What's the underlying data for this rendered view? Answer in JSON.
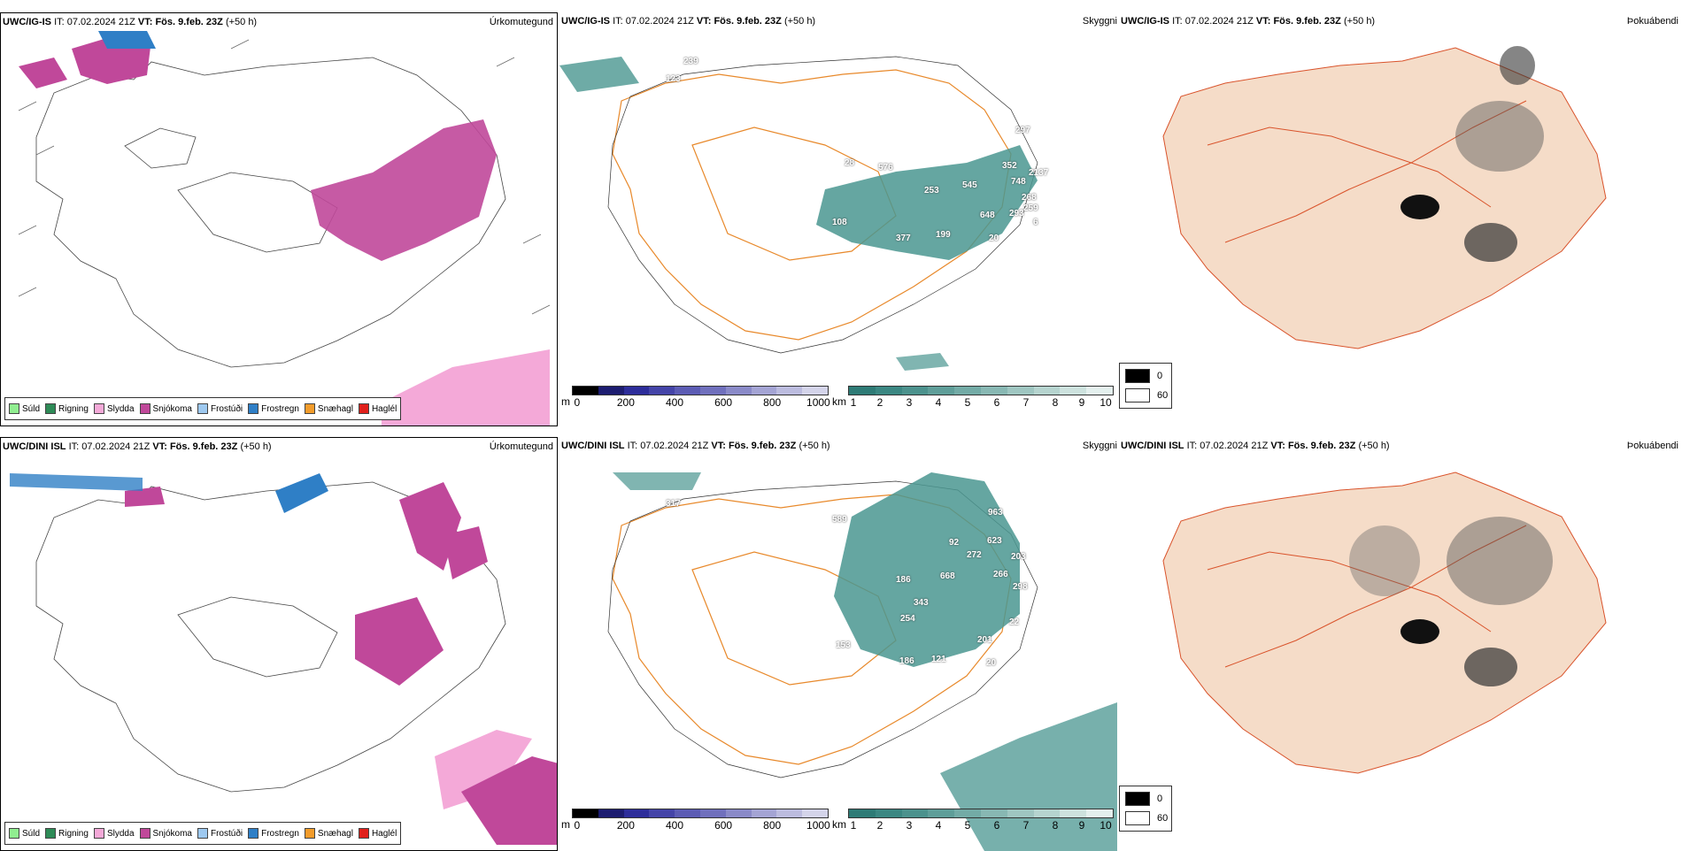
{
  "rows": [
    {
      "model": "UWC/IG-IS",
      "it_label": "IT:",
      "it_value": "07.02.2024 21Z",
      "vt_label": "VT:",
      "vt_value": "Fös. 9.feb. 23Z",
      "lead": "(+50 h)",
      "numbers": [
        "239",
        "123",
        "297",
        "28",
        "576",
        "352",
        "2137",
        "748",
        "253",
        "545",
        "268",
        "259",
        "293",
        "6",
        "648",
        "108",
        "377",
        "199",
        "20"
      ]
    },
    {
      "model": "UWC/DINI ISL",
      "it_label": "IT:",
      "it_value": "07.02.2024 21Z",
      "vt_label": "VT:",
      "vt_value": "Fös. 9.feb. 23Z",
      "lead": "(+50 h)",
      "numbers": [
        "317",
        "589",
        "963",
        "92",
        "272",
        "623",
        "186",
        "668",
        "266",
        "203",
        "298",
        "343",
        "254",
        "22",
        "201",
        "153",
        "186",
        "121",
        "20"
      ]
    }
  ],
  "panel_titles": {
    "precip": "Úrkomutegund",
    "cloud": "Skyggni",
    "fog": "Þokuábendi"
  },
  "precip_legend": [
    {
      "label": "Súld",
      "color": "#90ee90"
    },
    {
      "label": "Rigning",
      "color": "#2e8b57"
    },
    {
      "label": "Slydda",
      "color": "#f4a9d8"
    },
    {
      "label": "Snjókoma",
      "color": "#c0489a"
    },
    {
      "label": "Frostúði",
      "color": "#9ec9f0"
    },
    {
      "label": "Frostregn",
      "color": "#2f7fc6"
    },
    {
      "label": "Snæhagl",
      "color": "#f39c2b"
    },
    {
      "label": "Haglél",
      "color": "#e0201b"
    }
  ],
  "height_scale": {
    "unit": "m",
    "ticks": [
      "0",
      "200",
      "400",
      "600",
      "800",
      "1000"
    ],
    "colors": [
      "#000000",
      "#1c1c70",
      "#2d2d9a",
      "#4444a8",
      "#5c5cb4",
      "#7070bd",
      "#8a8ac8",
      "#a4a4d4",
      "#bcbcdf",
      "#d4d4ea"
    ]
  },
  "visibility_scale": {
    "unit": "km",
    "ticks": [
      "1",
      "2",
      "3",
      "4",
      "5",
      "6",
      "7",
      "8",
      "9",
      "10"
    ],
    "colors": [
      "#2e7b76",
      "#3b8782",
      "#4c928d",
      "#5f9e99",
      "#73aba6",
      "#88b8b3",
      "#9fc6c1",
      "#b6d4cf",
      "#cde2de",
      "#e4f0ee"
    ]
  },
  "fog_scale": {
    "top": "0",
    "bottom": "60",
    "top_color": "#000000",
    "bottom_color": "#ffffff"
  },
  "colors": {
    "snow": "#c0489a",
    "frostregn": "#2f7fc6",
    "slydda": "#f4a9d8",
    "visibility": "#4a9690",
    "roads": "#e8892b",
    "land_fog": "#f5dcc8",
    "roads_fog": "#d9532b"
  }
}
